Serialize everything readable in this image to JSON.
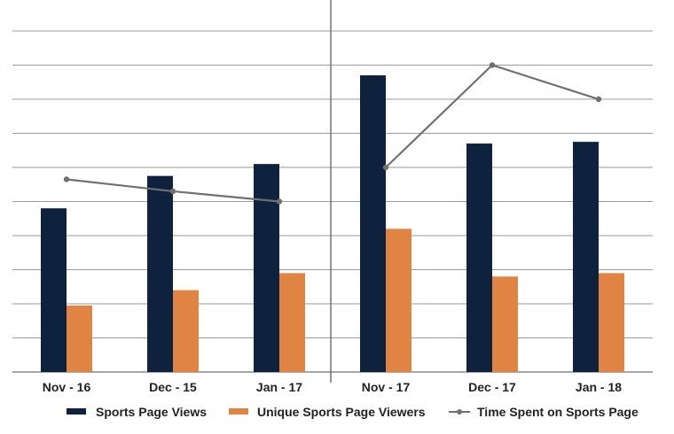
{
  "chart_data": {
    "type": "bar",
    "categories": [
      "Nov - 16",
      "Dec - 15",
      "Jan - 17",
      "Nov - 17",
      "Dec - 17",
      "Jan - 18"
    ],
    "series": [
      {
        "name": "Sports Page Views",
        "type": "bar",
        "color": "#0f223d",
        "values": [
          4.8,
          5.75,
          6.1,
          8.7,
          6.7,
          6.75
        ]
      },
      {
        "name": "Unique Sports Page Viewers",
        "type": "bar",
        "color": "#e08443",
        "values": [
          1.95,
          2.4,
          2.9,
          4.2,
          2.8,
          2.9
        ]
      },
      {
        "name": "Time Spent on Sports Page",
        "type": "line",
        "color": "#707070",
        "values": [
          5.65,
          5.3,
          5.0,
          6.0,
          9.0,
          8.0
        ]
      }
    ],
    "title": "",
    "xlabel": "",
    "ylabel": "",
    "ylim": [
      0,
      10
    ],
    "grid": true,
    "legend": "bottom",
    "group_divider_after_category": 2
  }
}
